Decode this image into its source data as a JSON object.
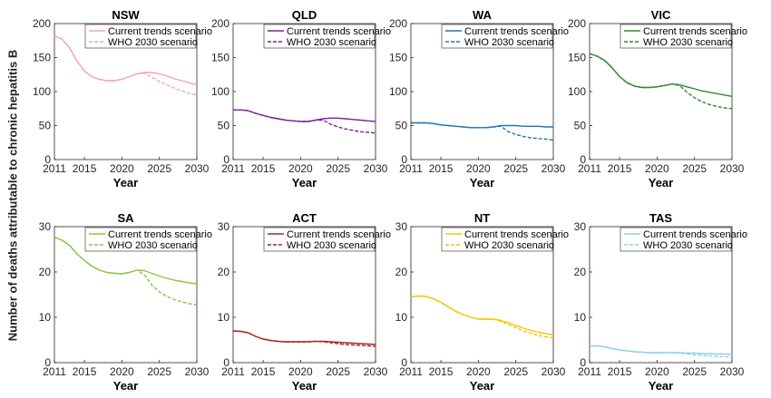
{
  "ylabel": "Number of deaths attributable to chronic hepatitis B",
  "legend": {
    "current": "Current trends scenario",
    "who": "WHO 2030 scenario"
  },
  "chart_data": [
    {
      "type": "line",
      "title": "NSW",
      "xlabel": "Year",
      "color": "#f4a6b4",
      "xlim": [
        2011,
        2030
      ],
      "ylim": [
        0,
        200
      ],
      "xticks": [
        2011,
        2015,
        2020,
        2025,
        2030
      ],
      "yticks": [
        0,
        50,
        100,
        150,
        200
      ],
      "x": [
        2011,
        2012,
        2013,
        2014,
        2015,
        2016,
        2017,
        2018,
        2019,
        2020,
        2021,
        2022,
        2023,
        2024,
        2025,
        2026,
        2027,
        2028,
        2029,
        2030
      ],
      "series": [
        {
          "name": "Current trends scenario",
          "values": [
            182,
            177,
            165,
            145,
            130,
            122,
            118,
            116,
            116,
            118,
            122,
            126,
            128,
            128,
            126,
            123,
            119,
            116,
            113,
            110
          ]
        },
        {
          "name": "WHO 2030 scenario",
          "values": [
            182,
            177,
            165,
            145,
            130,
            122,
            118,
            116,
            116,
            118,
            122,
            126,
            127,
            121,
            115,
            110,
            105,
            101,
            97,
            95
          ]
        }
      ]
    },
    {
      "type": "line",
      "title": "QLD",
      "xlabel": "Year",
      "color": "#7b1fa2",
      "xlim": [
        2011,
        2030
      ],
      "ylim": [
        0,
        200
      ],
      "xticks": [
        2011,
        2015,
        2020,
        2025,
        2030
      ],
      "yticks": [
        0,
        50,
        100,
        150,
        200
      ],
      "x": [
        2011,
        2012,
        2013,
        2014,
        2015,
        2016,
        2017,
        2018,
        2019,
        2020,
        2021,
        2022,
        2023,
        2024,
        2025,
        2026,
        2027,
        2028,
        2029,
        2030
      ],
      "series": [
        {
          "name": "Current trends scenario",
          "values": [
            73,
            73,
            72,
            68,
            65,
            62,
            60,
            58,
            57,
            56,
            56,
            58,
            60,
            61,
            61,
            60,
            59,
            58,
            57,
            56
          ]
        },
        {
          "name": "WHO 2030 scenario",
          "values": [
            73,
            73,
            72,
            68,
            65,
            62,
            60,
            58,
            57,
            56,
            56,
            58,
            58,
            52,
            48,
            45,
            43,
            41,
            40,
            39
          ]
        }
      ]
    },
    {
      "type": "line",
      "title": "WA",
      "xlabel": "Year",
      "color": "#1f77b4",
      "xlim": [
        2011,
        2030
      ],
      "ylim": [
        0,
        200
      ],
      "xticks": [
        2011,
        2015,
        2020,
        2025,
        2030
      ],
      "yticks": [
        0,
        50,
        100,
        150,
        200
      ],
      "x": [
        2011,
        2012,
        2013,
        2014,
        2015,
        2016,
        2017,
        2018,
        2019,
        2020,
        2021,
        2022,
        2023,
        2024,
        2025,
        2026,
        2027,
        2028,
        2029,
        2030
      ],
      "series": [
        {
          "name": "Current trends scenario",
          "values": [
            54,
            54,
            54,
            53,
            51,
            50,
            49,
            48,
            47,
            47,
            47,
            48,
            50,
            50,
            50,
            49,
            49,
            49,
            48,
            48
          ]
        },
        {
          "name": "WHO 2030 scenario",
          "values": [
            54,
            54,
            54,
            53,
            51,
            50,
            49,
            48,
            47,
            47,
            47,
            48,
            49,
            41,
            37,
            34,
            32,
            31,
            30,
            29
          ]
        }
      ]
    },
    {
      "type": "line",
      "title": "VIC",
      "xlabel": "Year",
      "color": "#2e8b2e",
      "xlim": [
        2011,
        2030
      ],
      "ylim": [
        0,
        200
      ],
      "xticks": [
        2011,
        2015,
        2020,
        2025,
        2030
      ],
      "yticks": [
        0,
        50,
        100,
        150,
        200
      ],
      "x": [
        2011,
        2012,
        2013,
        2014,
        2015,
        2016,
        2017,
        2018,
        2019,
        2020,
        2021,
        2022,
        2023,
        2024,
        2025,
        2026,
        2027,
        2028,
        2029,
        2030
      ],
      "series": [
        {
          "name": "Current trends scenario",
          "values": [
            156,
            152,
            146,
            135,
            122,
            113,
            108,
            106,
            106,
            107,
            109,
            111,
            110,
            107,
            104,
            101,
            99,
            97,
            95,
            93
          ]
        },
        {
          "name": "WHO 2030 scenario",
          "values": [
            156,
            152,
            146,
            135,
            122,
            113,
            108,
            106,
            106,
            107,
            109,
            111,
            109,
            99,
            91,
            85,
            81,
            78,
            76,
            75
          ]
        }
      ]
    },
    {
      "type": "line",
      "title": "SA",
      "xlabel": "Year",
      "color": "#8ec63f",
      "xlim": [
        2011,
        2030
      ],
      "ylim": [
        0,
        30
      ],
      "xticks": [
        2011,
        2015,
        2020,
        2025,
        2030
      ],
      "yticks": [
        0,
        10,
        20,
        30
      ],
      "x": [
        2011,
        2012,
        2013,
        2014,
        2015,
        2016,
        2017,
        2018,
        2019,
        2020,
        2021,
        2022,
        2023,
        2024,
        2025,
        2026,
        2027,
        2028,
        2029,
        2030
      ],
      "series": [
        {
          "name": "Current trends scenario",
          "values": [
            27.7,
            27.0,
            25.9,
            24.0,
            22.5,
            21.3,
            20.4,
            19.9,
            19.7,
            19.6,
            19.9,
            20.4,
            20.3,
            19.7,
            19.1,
            18.6,
            18.2,
            17.9,
            17.6,
            17.4
          ]
        },
        {
          "name": "WHO 2030 scenario",
          "values": [
            27.7,
            27.0,
            25.9,
            24.0,
            22.5,
            21.3,
            20.4,
            19.9,
            19.7,
            19.6,
            19.9,
            20.4,
            19.4,
            17.1,
            15.6,
            14.6,
            13.9,
            13.4,
            13.0,
            12.7
          ]
        }
      ]
    },
    {
      "type": "line",
      "title": "ACT",
      "xlabel": "Year",
      "color": "#b22222",
      "xlim": [
        2011,
        2030
      ],
      "ylim": [
        0,
        30
      ],
      "xticks": [
        2011,
        2015,
        2020,
        2025,
        2030
      ],
      "yticks": [
        0,
        10,
        20,
        30
      ],
      "x": [
        2011,
        2012,
        2013,
        2014,
        2015,
        2016,
        2017,
        2018,
        2019,
        2020,
        2021,
        2022,
        2023,
        2024,
        2025,
        2026,
        2027,
        2028,
        2029,
        2030
      ],
      "series": [
        {
          "name": "Current trends scenario",
          "values": [
            7.0,
            6.9,
            6.6,
            5.8,
            5.2,
            4.9,
            4.7,
            4.6,
            4.6,
            4.6,
            4.6,
            4.7,
            4.7,
            4.6,
            4.5,
            4.4,
            4.3,
            4.2,
            4.1,
            4.0
          ]
        },
        {
          "name": "WHO 2030 scenario",
          "values": [
            7.0,
            6.9,
            6.6,
            5.8,
            5.2,
            4.9,
            4.7,
            4.6,
            4.6,
            4.6,
            4.6,
            4.7,
            4.6,
            4.4,
            4.2,
            4.0,
            3.9,
            3.8,
            3.7,
            3.6
          ]
        }
      ]
    },
    {
      "type": "line",
      "title": "NT",
      "xlabel": "Year",
      "color": "#f5c400",
      "xlim": [
        2011,
        2030
      ],
      "ylim": [
        0,
        30
      ],
      "xticks": [
        2011,
        2015,
        2020,
        2025,
        2030
      ],
      "yticks": [
        0,
        10,
        20,
        30
      ],
      "x": [
        2011,
        2012,
        2013,
        2014,
        2015,
        2016,
        2017,
        2018,
        2019,
        2020,
        2021,
        2022,
        2023,
        2024,
        2025,
        2026,
        2027,
        2028,
        2029,
        2030
      ],
      "series": [
        {
          "name": "Current trends scenario",
          "values": [
            14.5,
            14.7,
            14.6,
            14.1,
            13.3,
            12.3,
            11.3,
            10.6,
            10.0,
            9.6,
            9.6,
            9.6,
            9.3,
            8.8,
            8.2,
            7.6,
            7.1,
            6.7,
            6.4,
            6.1
          ]
        },
        {
          "name": "WHO 2030 scenario",
          "values": [
            14.5,
            14.7,
            14.6,
            14.1,
            13.3,
            12.3,
            11.3,
            10.6,
            10.0,
            9.6,
            9.6,
            9.6,
            9.1,
            8.4,
            7.7,
            7.0,
            6.5,
            6.0,
            5.7,
            5.5
          ]
        }
      ]
    },
    {
      "type": "line",
      "title": "TAS",
      "xlabel": "Year",
      "color": "#8fd0ee",
      "xlim": [
        2011,
        2030
      ],
      "ylim": [
        0,
        30
      ],
      "xticks": [
        2011,
        2015,
        2020,
        2025,
        2030
      ],
      "yticks": [
        0,
        10,
        20,
        30
      ],
      "x": [
        2011,
        2012,
        2013,
        2014,
        2015,
        2016,
        2017,
        2018,
        2019,
        2020,
        2021,
        2022,
        2023,
        2024,
        2025,
        2026,
        2027,
        2028,
        2029,
        2030
      ],
      "series": [
        {
          "name": "Current trends scenario",
          "values": [
            3.7,
            3.7,
            3.5,
            3.1,
            2.8,
            2.6,
            2.4,
            2.3,
            2.2,
            2.2,
            2.2,
            2.2,
            2.2,
            2.1,
            2.1,
            2.0,
            2.0,
            1.9,
            1.9,
            1.8
          ]
        },
        {
          "name": "WHO 2030 scenario",
          "values": [
            3.7,
            3.7,
            3.5,
            3.1,
            2.8,
            2.6,
            2.4,
            2.3,
            2.2,
            2.2,
            2.2,
            2.2,
            2.1,
            1.9,
            1.7,
            1.6,
            1.5,
            1.4,
            1.3,
            1.3
          ]
        }
      ]
    }
  ]
}
